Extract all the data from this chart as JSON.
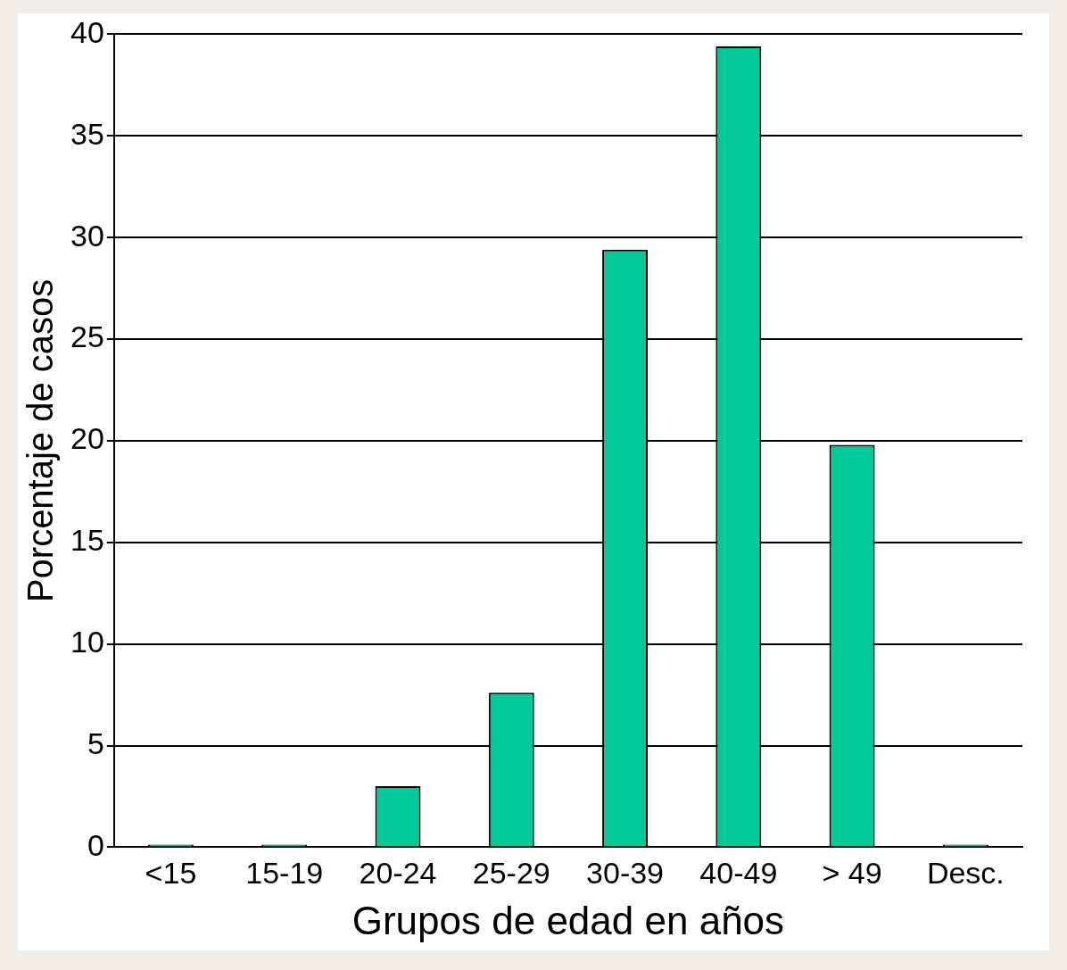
{
  "chart_data": {
    "type": "bar",
    "xlabel": "Grupos de edad en años",
    "ylabel": "Porcentaje de casos",
    "categories": [
      "<15",
      "15-19",
      "20-24",
      "25-29",
      "30-39",
      "40-49",
      "> 49",
      "Desc."
    ],
    "values": [
      0,
      0,
      3,
      7.6,
      29.4,
      39.4,
      19.8,
      0
    ],
    "color": "#00c896",
    "ylim": [
      0,
      40
    ],
    "yticks": [
      0,
      5,
      10,
      15,
      20,
      25,
      30,
      35,
      40
    ],
    "grid": "y"
  }
}
